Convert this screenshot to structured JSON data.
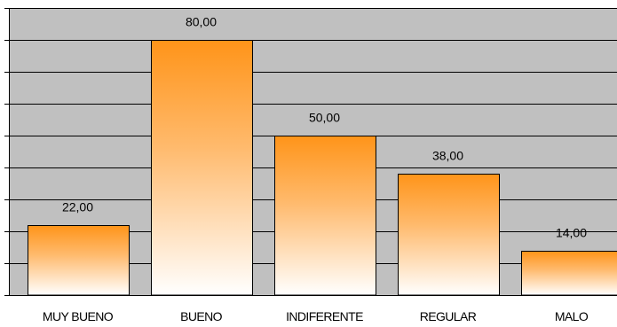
{
  "chart_data": {
    "type": "bar",
    "title": "",
    "xlabel": "",
    "ylabel": "",
    "categories": [
      "MUY BUENO",
      "BUENO",
      "INDIFERENTE",
      "REGULAR",
      "MALO"
    ],
    "values": [
      22,
      80,
      50,
      38,
      14
    ],
    "data_labels": [
      "22,00",
      "80,00",
      "50,00",
      "38,00",
      "14,00"
    ],
    "ylim": [
      0,
      90
    ],
    "y_tick_step": 10,
    "grid": true,
    "legend": "none",
    "colors": {
      "plot_background": "#c0c0c0",
      "gridline": "#000000",
      "bar_top": "#ff9419",
      "bar_bottom": "#ffffff",
      "bar_border": "#000000"
    }
  }
}
